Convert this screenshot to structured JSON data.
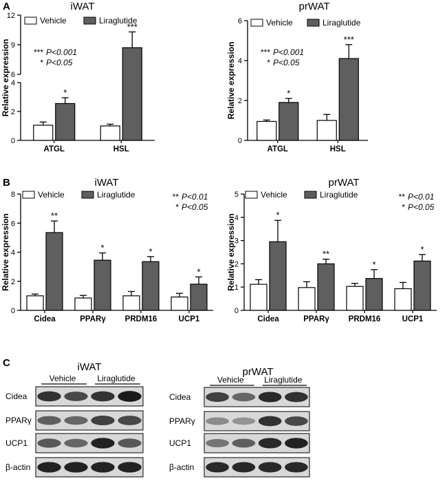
{
  "panel_labels": [
    "A",
    "B",
    "C"
  ],
  "legend": {
    "vehicle": "Vehicle",
    "liraglutide": "Liraglutide"
  },
  "colors": {
    "vehicle_fill": "#ffffff",
    "liraglutide_fill": "#5f5f5f",
    "axis": "#000000",
    "blot_bg": "#d8d8d8",
    "blot_band": "#1a1a1a"
  },
  "chart_data": [
    {
      "type": "bar",
      "panel": "A",
      "title": "iWAT",
      "ylabel": "Relative expression",
      "categories": [
        "ATGL",
        "HSL"
      ],
      "series": [
        {
          "name": "Vehicle",
          "values": [
            1.05,
            1.0
          ],
          "errors": [
            0.22,
            0.12
          ]
        },
        {
          "name": "Liraglutide",
          "values": [
            2.55,
            8.7
          ],
          "errors": [
            0.4,
            1.6
          ]
        }
      ],
      "significance": [
        [
          "",
          "*"
        ],
        [
          "",
          "***"
        ]
      ],
      "axis_break": {
        "lower": [
          0,
          4
        ],
        "upper": [
          6,
          12
        ]
      },
      "yticks_lower": [
        "0",
        "2",
        "4"
      ],
      "yticks_upper": [
        "6",
        "9",
        "12"
      ],
      "annotations": [
        [
          "***",
          "P<0.001"
        ],
        [
          "*",
          "P<0.05"
        ]
      ]
    },
    {
      "type": "bar",
      "panel": "A",
      "title": "prWAT",
      "ylabel": "Relative expression",
      "categories": [
        "ATGL",
        "HSL"
      ],
      "series": [
        {
          "name": "Vehicle",
          "values": [
            0.95,
            1.0
          ],
          "errors": [
            0.07,
            0.3
          ]
        },
        {
          "name": "Liraglutide",
          "values": [
            1.9,
            4.1
          ],
          "errors": [
            0.2,
            0.7
          ]
        }
      ],
      "significance": [
        [
          "",
          "*"
        ],
        [
          "",
          "***"
        ]
      ],
      "ylim": [
        0,
        6
      ],
      "yticks": [
        "0",
        "2",
        "4",
        "6"
      ],
      "annotations": [
        [
          "***",
          "P<0.001"
        ],
        [
          "*",
          "P<0.05"
        ]
      ]
    },
    {
      "type": "bar",
      "panel": "B",
      "title": "iWAT",
      "ylabel": "Relative expression",
      "categories": [
        "Cidea",
        "PPARγ",
        "PRDM16",
        "UCP1"
      ],
      "series": [
        {
          "name": "Vehicle",
          "values": [
            1.0,
            0.85,
            1.0,
            0.92
          ],
          "errors": [
            0.12,
            0.18,
            0.3,
            0.25
          ]
        },
        {
          "name": "Liraglutide",
          "values": [
            5.35,
            3.45,
            3.35,
            1.8
          ],
          "errors": [
            0.8,
            0.5,
            0.35,
            0.5
          ]
        }
      ],
      "significance": [
        [
          "",
          "**"
        ],
        [
          "",
          "*"
        ],
        [
          "",
          "*"
        ],
        [
          "",
          "*"
        ]
      ],
      "ylim": [
        0,
        8
      ],
      "yticks": [
        "0",
        "2",
        "4",
        "6",
        "8"
      ],
      "annotations": [
        [
          "**",
          "P<0.01"
        ],
        [
          "*",
          "P<0.05"
        ]
      ]
    },
    {
      "type": "bar",
      "panel": "B",
      "title": "prWAT",
      "ylabel": "Relative expression",
      "categories": [
        "Cidea",
        "PPARγ",
        "PRDM16",
        "UCP1"
      ],
      "series": [
        {
          "name": "Vehicle",
          "values": [
            1.12,
            0.98,
            1.03,
            0.93
          ],
          "errors": [
            0.2,
            0.25,
            0.13,
            0.27
          ]
        },
        {
          "name": "Liraglutide",
          "values": [
            2.95,
            2.0,
            1.37,
            2.12
          ],
          "errors": [
            0.92,
            0.2,
            0.38,
            0.28
          ]
        }
      ],
      "significance": [
        [
          "",
          "*"
        ],
        [
          "",
          "**"
        ],
        [
          "",
          "*"
        ],
        [
          "",
          "*"
        ]
      ],
      "ylim": [
        0,
        5
      ],
      "yticks": [
        "0",
        "1",
        "2",
        "3",
        "4",
        "5"
      ],
      "annotations": [
        [
          "**",
          "P<0.01"
        ],
        [
          "*",
          "P<0.05"
        ]
      ]
    }
  ],
  "western_blots": [
    {
      "title": "iWAT",
      "groups": [
        "Vehicle",
        "Liraglutide"
      ],
      "rows": [
        {
          "label": "Cidea",
          "intensity": [
            0.85,
            0.7,
            0.85,
            1.0
          ]
        },
        {
          "label": "PPARγ",
          "intensity": [
            0.55,
            0.5,
            0.75,
            0.7
          ]
        },
        {
          "label": "UCP1",
          "intensity": [
            0.6,
            0.5,
            0.95,
            0.6
          ]
        },
        {
          "label": "β-actin",
          "intensity": [
            0.95,
            0.95,
            0.95,
            0.95
          ]
        }
      ]
    },
    {
      "title": "prWAT",
      "groups": [
        "Vehicle",
        "Liraglutide"
      ],
      "rows": [
        {
          "label": "Cidea",
          "intensity": [
            0.75,
            0.5,
            0.9,
            0.85
          ]
        },
        {
          "label": "PPARγ",
          "intensity": [
            0.25,
            0.2,
            0.85,
            0.7
          ]
        },
        {
          "label": "UCP1",
          "intensity": [
            0.4,
            0.55,
            0.9,
            0.95
          ]
        },
        {
          "label": "β-actin",
          "intensity": [
            0.9,
            0.9,
            0.9,
            0.9
          ]
        }
      ]
    }
  ]
}
